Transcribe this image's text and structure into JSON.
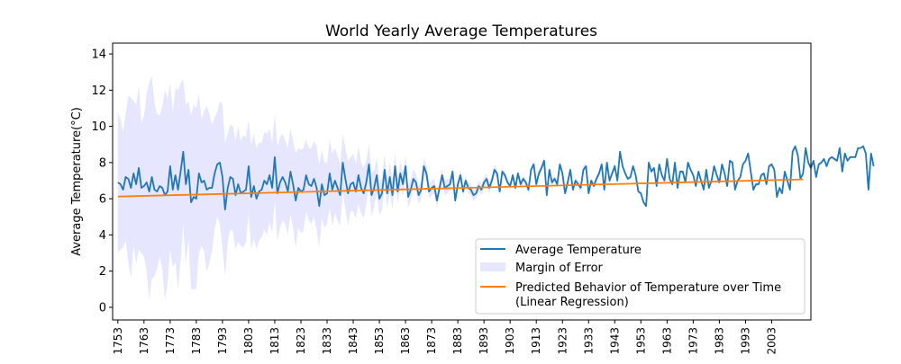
{
  "chart_data": {
    "type": "line",
    "title": "World Yearly Average Temperatures",
    "xlabel": "",
    "ylabel": "Average Temperature(°C)",
    "xlim": [
      1751,
      2018
    ],
    "ylim": [
      -0.7,
      14.6
    ],
    "xticks": [
      1753,
      1763,
      1773,
      1783,
      1793,
      1803,
      1813,
      1823,
      1833,
      1843,
      1853,
      1863,
      1873,
      1883,
      1893,
      1903,
      1913,
      1923,
      1933,
      1943,
      1953,
      1963,
      1973,
      1983,
      1993,
      2003
    ],
    "yticks": [
      0,
      2,
      4,
      6,
      8,
      10,
      12,
      14
    ],
    "grid": false,
    "legend_position": "lower-right",
    "legend": [
      {
        "label": "Average Temperature",
        "kind": "line",
        "color": "#1f77b4"
      },
      {
        "label": "Margin of Error",
        "kind": "patch",
        "color": "#e6e6ff"
      },
      {
        "label": "Predicted Behavior of Temperature over Time\n(Linear Regression)",
        "kind": "line",
        "color": "#ff7f0e"
      }
    ],
    "series": [
      {
        "name": "Average Temperature",
        "color": "#1f77b4",
        "x_start": 1753,
        "x_step": 1,
        "values": [
          6.9,
          6.8,
          6.5,
          7.2,
          7.1,
          6.6,
          7.4,
          6.8,
          7.7,
          6.6,
          6.7,
          6.9,
          6.4,
          7.2,
          6.5,
          6.4,
          6.7,
          6.6,
          6.2,
          6.4,
          7.8,
          6.5,
          7.3,
          6.5,
          7.5,
          8.6,
          6.8,
          7.6,
          5.8,
          6.1,
          6.0,
          7.4,
          6.9,
          7.0,
          6.5,
          6.6,
          6.6,
          7.4,
          7.9,
          8.0,
          7.2,
          5.4,
          6.6,
          7.2,
          7.1,
          6.2,
          6.8,
          6.3,
          6.4,
          6.5,
          7.8,
          6.1,
          6.7,
          6.0,
          6.4,
          6.5,
          7.0,
          6.8,
          7.3,
          6.6,
          8.3,
          6.3,
          6.9,
          7.2,
          6.9,
          6.4,
          7.5,
          6.8,
          5.9,
          6.6,
          6.4,
          6.5,
          7.3,
          6.8,
          6.7,
          7.1,
          6.6,
          5.6,
          6.8,
          6.2,
          6.3,
          7.4,
          6.5,
          7.0,
          6.6,
          6.2,
          8.0,
          7.1,
          6.3,
          6.8,
          6.9,
          6.4,
          7.3,
          6.6,
          6.3,
          6.9,
          7.9,
          6.2,
          6.6,
          7.3,
          6.0,
          6.3,
          7.6,
          6.3,
          7.2,
          6.2,
          7.8,
          6.4,
          7.4,
          6.8,
          7.8,
          6.1,
          6.5,
          7.1,
          6.9,
          6.2,
          6.5,
          7.8,
          7.4,
          6.4,
          6.6,
          6.7,
          5.9,
          6.6,
          7.3,
          6.6,
          6.7,
          6.8,
          7.5,
          5.9,
          6.8,
          7.3,
          6.4,
          7.0,
          6.6,
          6.5,
          6.2,
          6.3,
          6.7,
          6.5,
          6.9,
          7.1,
          6.6,
          7.0,
          7.6,
          7.4,
          6.4,
          7.5,
          7.3,
          6.9,
          6.7,
          7.3,
          6.6,
          7.4,
          6.8,
          7.1,
          6.9,
          6.5,
          7.6,
          7.9,
          6.8,
          7.4,
          7.7,
          8.1,
          6.2,
          7.6,
          6.9,
          7.1,
          6.8,
          7.9,
          7.4,
          6.3,
          6.9,
          7.6,
          6.5,
          7.0,
          6.8,
          6.6,
          7.6,
          7.8,
          6.3,
          7.0,
          6.7,
          7.1,
          7.4,
          7.9,
          6.5,
          8.0,
          7.0,
          7.4,
          7.8,
          7.0,
          8.6,
          7.8,
          7.4,
          7.1,
          7.2,
          7.8,
          7.3,
          6.4,
          6.3,
          5.8,
          5.6,
          8.0,
          7.5,
          7.7,
          6.7,
          7.9,
          7.3,
          7.0,
          8.2,
          7.1,
          6.8,
          8.0,
          6.6,
          7.5,
          7.5,
          6.9,
          8.0,
          7.6,
          7.3,
          6.7,
          7.5,
          7.0,
          6.5,
          7.6,
          6.6,
          7.0,
          7.8,
          7.3,
          6.9,
          7.9,
          7.4,
          6.7,
          8.1,
          8.0,
          6.5,
          7.0,
          7.2,
          7.9,
          8.1,
          8.5,
          7.5,
          6.5,
          6.8,
          6.8,
          7.3,
          7.4,
          6.8,
          7.8,
          7.9,
          7.6,
          6.1,
          6.6,
          6.3,
          7.5,
          7.0,
          6.5,
          8.6,
          8.9,
          8.4,
          7.1,
          7.4,
          8.8,
          8.0,
          7.7,
          8.1,
          7.2,
          7.9,
          8.0,
          8.2,
          7.8,
          8.2,
          8.3,
          8.2,
          8.1,
          8.8,
          7.5,
          8.5,
          8.1,
          8.3,
          8.3,
          8.3,
          8.8,
          8.8,
          8.9,
          8.5,
          6.5,
          8.5,
          7.8
        ]
      },
      {
        "name": "Margin of Error",
        "color": "#e6e6ff",
        "x_start": 1753,
        "x_step": 1,
        "uncertainty": [
          3.9,
          3.6,
          3.2,
          3.5,
          4.6,
          5.0,
          4.0,
          4.4,
          4.5,
          3.6,
          3.9,
          4.9,
          6.0,
          5.6,
          4.8,
          4.3,
          3.9,
          4.5,
          5.8,
          5.1,
          4.6,
          4.3,
          4.8,
          5.5,
          4.9,
          4.0,
          4.4,
          3.8,
          4.8,
          5.1,
          5.0,
          4.4,
          3.5,
          3.9,
          4.6,
          4.1,
          3.5,
          3.1,
          2.9,
          3.4,
          4.0,
          3.7,
          3.0,
          2.9,
          2.9,
          3.0,
          3.2,
          2.9,
          3.1,
          2.9,
          2.6,
          2.9,
          2.9,
          2.8,
          2.7,
          2.6,
          2.7,
          2.8,
          2.6,
          2.5,
          2.4,
          2.6,
          2.5,
          2.4,
          2.3,
          2.4,
          2.4,
          2.4,
          2.6,
          2.2,
          2.3,
          2.3,
          2.0,
          2.0,
          2.1,
          2.1,
          2.3,
          2.3,
          1.9,
          1.8,
          1.7,
          1.9,
          2.0,
          1.8,
          1.8,
          1.7,
          1.6,
          1.7,
          1.8,
          1.5,
          1.6,
          1.5,
          1.6,
          1.4,
          1.4,
          1.2,
          1.1,
          1.2,
          1.0,
          1.0,
          0.9,
          0.9,
          0.8,
          0.8,
          0.8,
          0.8,
          0.7,
          0.7,
          0.7,
          0.6,
          0.6,
          0.6,
          0.6,
          0.5,
          0.5,
          0.5,
          0.5,
          0.5,
          0.4,
          0.4,
          0.4,
          0.4,
          0.4,
          0.4,
          0.4,
          0.4,
          0.4,
          0.3,
          0.3,
          0.3,
          0.3,
          0.3,
          0.3,
          0.3,
          0.3,
          0.3,
          0.3,
          0.3,
          0.3,
          0.3,
          0.3,
          0.3,
          0.3,
          0.3,
          0.3,
          0.2,
          0.2,
          0.2,
          0.2,
          0.2,
          0.2,
          0.2,
          0.2,
          0.2,
          0.2,
          0.2,
          0.2,
          0.2,
          0.2,
          0.2,
          0.2,
          0.2,
          0.2,
          0.2,
          0.2,
          0.2,
          0.2,
          0.2,
          0.2,
          0.2,
          0.2,
          0.2,
          0.2,
          0.2,
          0.2,
          0.2,
          0.2,
          0.2,
          0.2,
          0.2,
          0.2,
          0.2,
          0.2,
          0.2,
          0.2,
          0.2,
          0.2,
          0.2,
          0.2,
          0.2,
          0.2,
          0.2,
          0.1,
          0.1,
          0.1,
          0.1,
          0.1,
          0.1,
          0.1,
          0.1,
          0.1,
          0.1,
          0.1,
          0.1,
          0.1,
          0.1,
          0.1,
          0.1,
          0.1,
          0.1,
          0.1,
          0.1,
          0.1,
          0.1,
          0.1,
          0.1,
          0.1,
          0.1,
          0.1,
          0.1,
          0.1,
          0.1,
          0.1,
          0.1,
          0.1,
          0.1,
          0.1,
          0.1,
          0.1,
          0.1,
          0.1,
          0.1,
          0.1,
          0.1,
          0.1,
          0.1,
          0.1,
          0.1,
          0.1,
          0.1,
          0.1,
          0.1,
          0.1,
          0.1,
          0.1,
          0.1,
          0.1,
          0.1,
          0.1,
          0.1,
          0.1,
          0.1,
          0.1,
          0.1,
          0.1,
          0.1,
          0.1,
          0.1,
          0.1,
          0.1,
          0.1,
          0.1,
          0.1,
          0.1,
          0.1,
          0.1,
          0.1,
          0.1,
          0.1,
          0.1,
          0.1,
          0.1,
          0.1,
          0.1,
          0.1,
          0.1,
          0.1,
          0.1
        ]
      },
      {
        "name": "Predicted Behavior of Temperature over Time (Linear Regression)",
        "color": "#ff7f0e",
        "x": [
          1753,
          2015
        ],
        "values": [
          6.12,
          7.07
        ]
      }
    ]
  }
}
